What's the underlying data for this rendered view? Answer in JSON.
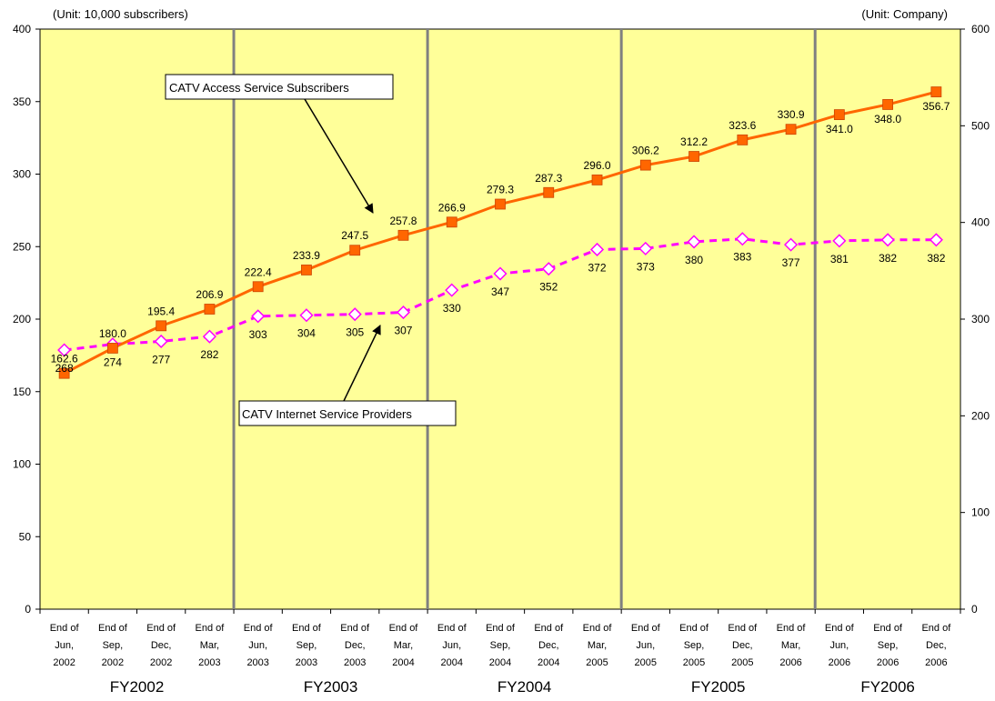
{
  "chart_data": {
    "type": "line",
    "left_unit_label": "(Unit: 10,000 subscribers)",
    "right_unit_label": "(Unit: Company)",
    "categories": [
      [
        "End of",
        "Jun,",
        "2002"
      ],
      [
        "End of",
        "Sep,",
        "2002"
      ],
      [
        "End of",
        "Dec,",
        "2002"
      ],
      [
        "End of",
        "Mar,",
        "2003"
      ],
      [
        "End of",
        "Jun,",
        "2003"
      ],
      [
        "End of",
        "Sep,",
        "2003"
      ],
      [
        "End of",
        "Dec,",
        "2003"
      ],
      [
        "End of",
        "Mar,",
        "2004"
      ],
      [
        "End of",
        "Jun,",
        "2004"
      ],
      [
        "End of",
        "Sep,",
        "2004"
      ],
      [
        "End of",
        "Dec,",
        "2004"
      ],
      [
        "End of",
        "Mar,",
        "2005"
      ],
      [
        "End of",
        "Jun,",
        "2005"
      ],
      [
        "End of",
        "Sep,",
        "2005"
      ],
      [
        "End of",
        "Dec,",
        "2005"
      ],
      [
        "End of",
        "Mar,",
        "2006"
      ],
      [
        "End of",
        "Jun,",
        "2006"
      ],
      [
        "End of",
        "Sep,",
        "2006"
      ],
      [
        "End of",
        "Dec,",
        "2006"
      ]
    ],
    "fiscal_years": [
      {
        "label": "FY2002",
        "start": 0,
        "end": 3
      },
      {
        "label": "FY2003",
        "start": 4,
        "end": 7
      },
      {
        "label": "FY2004",
        "start": 8,
        "end": 11
      },
      {
        "label": "FY2005",
        "start": 12,
        "end": 15
      },
      {
        "label": "FY2006",
        "start": 16,
        "end": 18
      }
    ],
    "y_left": {
      "min": 0,
      "max": 400,
      "ticks": [
        0,
        50,
        100,
        150,
        200,
        250,
        300,
        350,
        400
      ]
    },
    "y_right": {
      "min": 0,
      "max": 600,
      "ticks": [
        0,
        100,
        200,
        300,
        400,
        500,
        600
      ]
    },
    "series": [
      {
        "name": "CATV Access Service Subscribers",
        "axis": "left",
        "color": "#ff6600",
        "marker": "square",
        "values": [
          162.6,
          180.0,
          195.4,
          206.9,
          222.4,
          233.9,
          247.5,
          257.8,
          266.9,
          279.3,
          287.3,
          296.0,
          306.2,
          312.2,
          323.6,
          330.9,
          341.0,
          348.0,
          356.7
        ],
        "labels": [
          "162.6",
          "180.0",
          "195.4",
          "206.9",
          "222.4",
          "233.9",
          "247.5",
          "257.8",
          "266.9",
          "279.3",
          "287.3",
          "296.0",
          "306.2",
          "312.2",
          "323.6",
          "330.9",
          "341.0",
          "348.0",
          "356.7"
        ]
      },
      {
        "name": "CATV Internet Service Providers",
        "axis": "right",
        "color": "#ff00ff",
        "marker": "diamond",
        "dashed": true,
        "values": [
          268,
          274,
          277,
          282,
          303,
          304,
          305,
          307,
          330,
          347,
          352,
          372,
          373,
          380,
          383,
          377,
          381,
          382,
          382
        ],
        "labels": [
          "268",
          "274",
          "277",
          "282",
          "303",
          "304",
          "305",
          "307",
          "330",
          "347",
          "352",
          "372",
          "373",
          "380",
          "383",
          "377",
          "381",
          "382",
          "382"
        ]
      }
    ],
    "colors": {
      "plot_background": "#ffff99",
      "fy_divider": "#808080"
    },
    "grid": false
  }
}
